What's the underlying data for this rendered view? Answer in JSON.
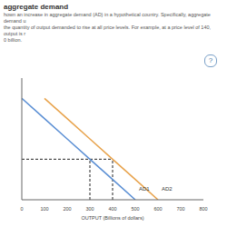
{
  "header": "aggregate demand",
  "description": [
    "hown an increase in aggregate demand (AD) in a hypothetical country. Specifically, aggregate demand u",
    "the quantity of output demanded to rise at all price levels. For example, at a price level of 140, output is r",
    "0 billion."
  ],
  "help_icon": "?",
  "chart_data": {
    "type": "line",
    "x_label": "OUTPUT (Billions of dollars)",
    "x": [
      0,
      100,
      200,
      300,
      400,
      500,
      600
    ],
    "series": [
      {
        "name": "AD1",
        "color": "#5b8fd4",
        "values": [
          200,
          180,
          160,
          140,
          120,
          100,
          null
        ]
      },
      {
        "name": "AD2",
        "color": "#e8a34c",
        "values": [
          null,
          200,
          180,
          160,
          140,
          120,
          100
        ]
      }
    ],
    "xlim": [
      0,
      800
    ],
    "xticks": [
      0,
      100,
      200,
      300,
      400,
      500,
      600,
      700,
      800
    ],
    "ylim": [
      100,
      220
    ],
    "tick_labels": "x",
    "grid": false,
    "line_style": "solid",
    "reference": {
      "y": 140,
      "x": [
        300,
        400
      ]
    }
  }
}
